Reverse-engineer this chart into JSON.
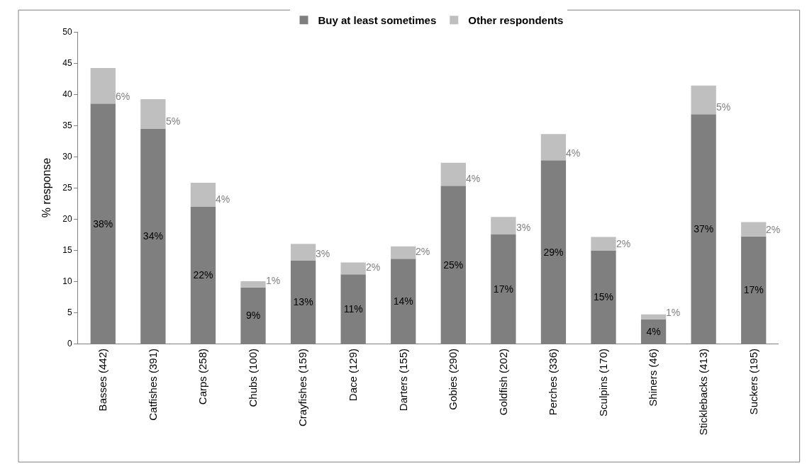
{
  "chart_data": {
    "type": "bar",
    "stacked": true,
    "ylabel": "% response",
    "categories": [
      "Basses (442)",
      "Catfishes (391)",
      "Carps (258)",
      "Chubs (100)",
      "Crayfishes (159)",
      "Dace (129)",
      "Darters (155)",
      "Gobies (290)",
      "Goldfish (202)",
      "Perches (336)",
      "Sculpins (170)",
      "Shiners (46)",
      "Sticklebacks (413)",
      "Suckers (195)"
    ],
    "series": [
      {
        "name": "Buy at least sometimes",
        "color": "#7f7f7f",
        "values": [
          38.5,
          34.5,
          22.0,
          9.0,
          13.3,
          11.1,
          13.6,
          25.3,
          17.5,
          29.4,
          14.9,
          3.9,
          36.8,
          17.2
        ],
        "value_labels": [
          "38%",
          "34%",
          "22%",
          "9%",
          "13%",
          "11%",
          "14%",
          "25%",
          "17%",
          "29%",
          "15%",
          "4%",
          "37%",
          "17%"
        ]
      },
      {
        "name": "Other respondents",
        "color": "#bfbfbf",
        "values": [
          5.7,
          4.7,
          3.8,
          1.0,
          2.7,
          1.9,
          2.0,
          3.7,
          2.8,
          4.2,
          2.2,
          0.8,
          4.6,
          2.3
        ],
        "value_labels": [
          "6%",
          "5%",
          "4%",
          "1%",
          "3%",
          "2%",
          "2%",
          "4%",
          "3%",
          "4%",
          "2%",
          "1%",
          "5%",
          "2%"
        ]
      }
    ],
    "ylim": [
      0,
      50
    ],
    "yticks": [
      0,
      5,
      10,
      15,
      20,
      25,
      30,
      35,
      40,
      45,
      50
    ],
    "grid": false,
    "legend": "top"
  }
}
